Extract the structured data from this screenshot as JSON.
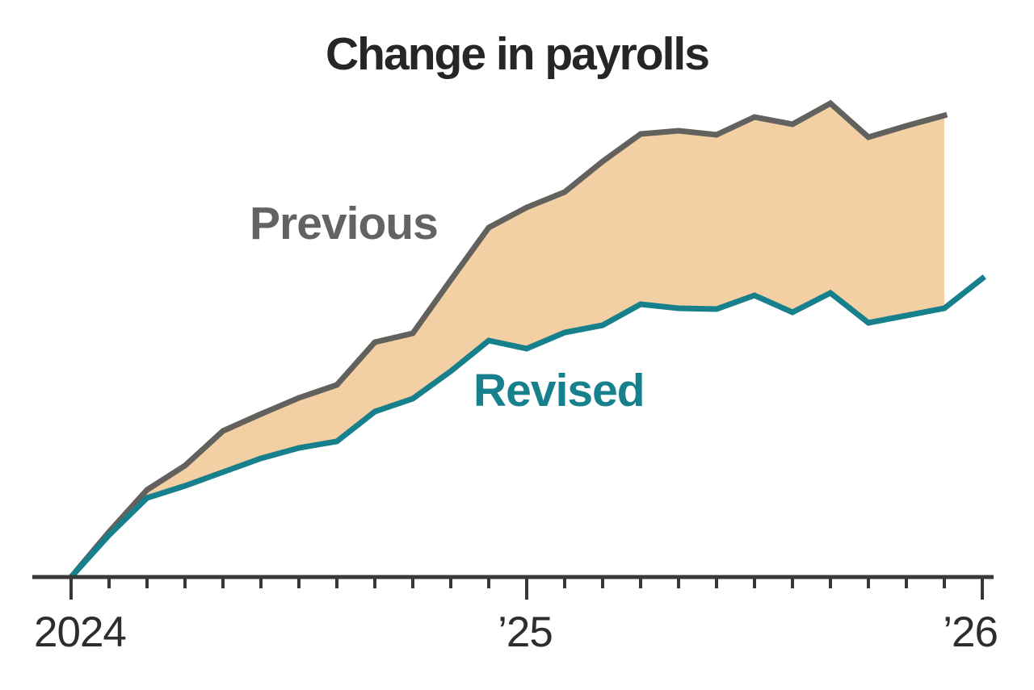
{
  "title": "Change in payrolls",
  "annotations": {
    "previous_label": "Previous",
    "revised_label": "Revised"
  },
  "x_axis": {
    "tick_labels": [
      "2024",
      "’25",
      "’26"
    ],
    "major_tick_indices": [
      0,
      12,
      24
    ],
    "minor_ticks": "monthly"
  },
  "colors": {
    "previous_line": "#62615e",
    "revised_line": "#17808d",
    "band_fill": "#f3cfa4",
    "axis": "#383838",
    "title_text": "#262626",
    "tick_text": "#2d2d2d",
    "previous_label_text": "#636363",
    "revised_label_text": "#17808d",
    "background": "#ffffff"
  },
  "chart_data": {
    "type": "line",
    "title": "Change in payrolls",
    "xlabel": "",
    "ylabel": "",
    "y_axis_shown": false,
    "units_note": "No y-axis is drawn; values are relative cumulative heights read from the plot (baseline = 0, arbitrary units)",
    "x": [
      "Jan 2024",
      "Feb 2024",
      "Mar 2024",
      "Apr 2024",
      "May 2024",
      "Jun 2024",
      "Jul 2024",
      "Aug 2024",
      "Sep 2024",
      "Oct 2024",
      "Nov 2024",
      "Dec 2024",
      "Jan 2025",
      "Feb 2025",
      "Mar 2025",
      "Apr 2025",
      "May 2025",
      "Jun 2025",
      "Jul 2025",
      "Aug 2025",
      "Sep 2025",
      "Oct 2025",
      "Nov 2025",
      "Dec 2025",
      "Jan 2026"
    ],
    "series": [
      {
        "name": "Previous",
        "values": [
          0,
          56,
          108,
          138,
          181,
          202,
          222,
          238,
          291,
          302,
          368,
          433,
          458,
          477,
          515,
          549,
          553,
          548,
          570,
          561,
          587,
          545,
          559,
          572
        ]
      },
      {
        "name": "Revised",
        "values": [
          0,
          52,
          98,
          113,
          130,
          147,
          160,
          168,
          205,
          221,
          255,
          293,
          283,
          303,
          312,
          338,
          333,
          332,
          349,
          328,
          352,
          315,
          324,
          333,
          370
        ]
      }
    ],
    "band_between_series": true,
    "band_right_edge": "Dec 2025",
    "ylim": [
      0,
      650
    ],
    "grid": false,
    "legend_position": "inline-annotations"
  }
}
